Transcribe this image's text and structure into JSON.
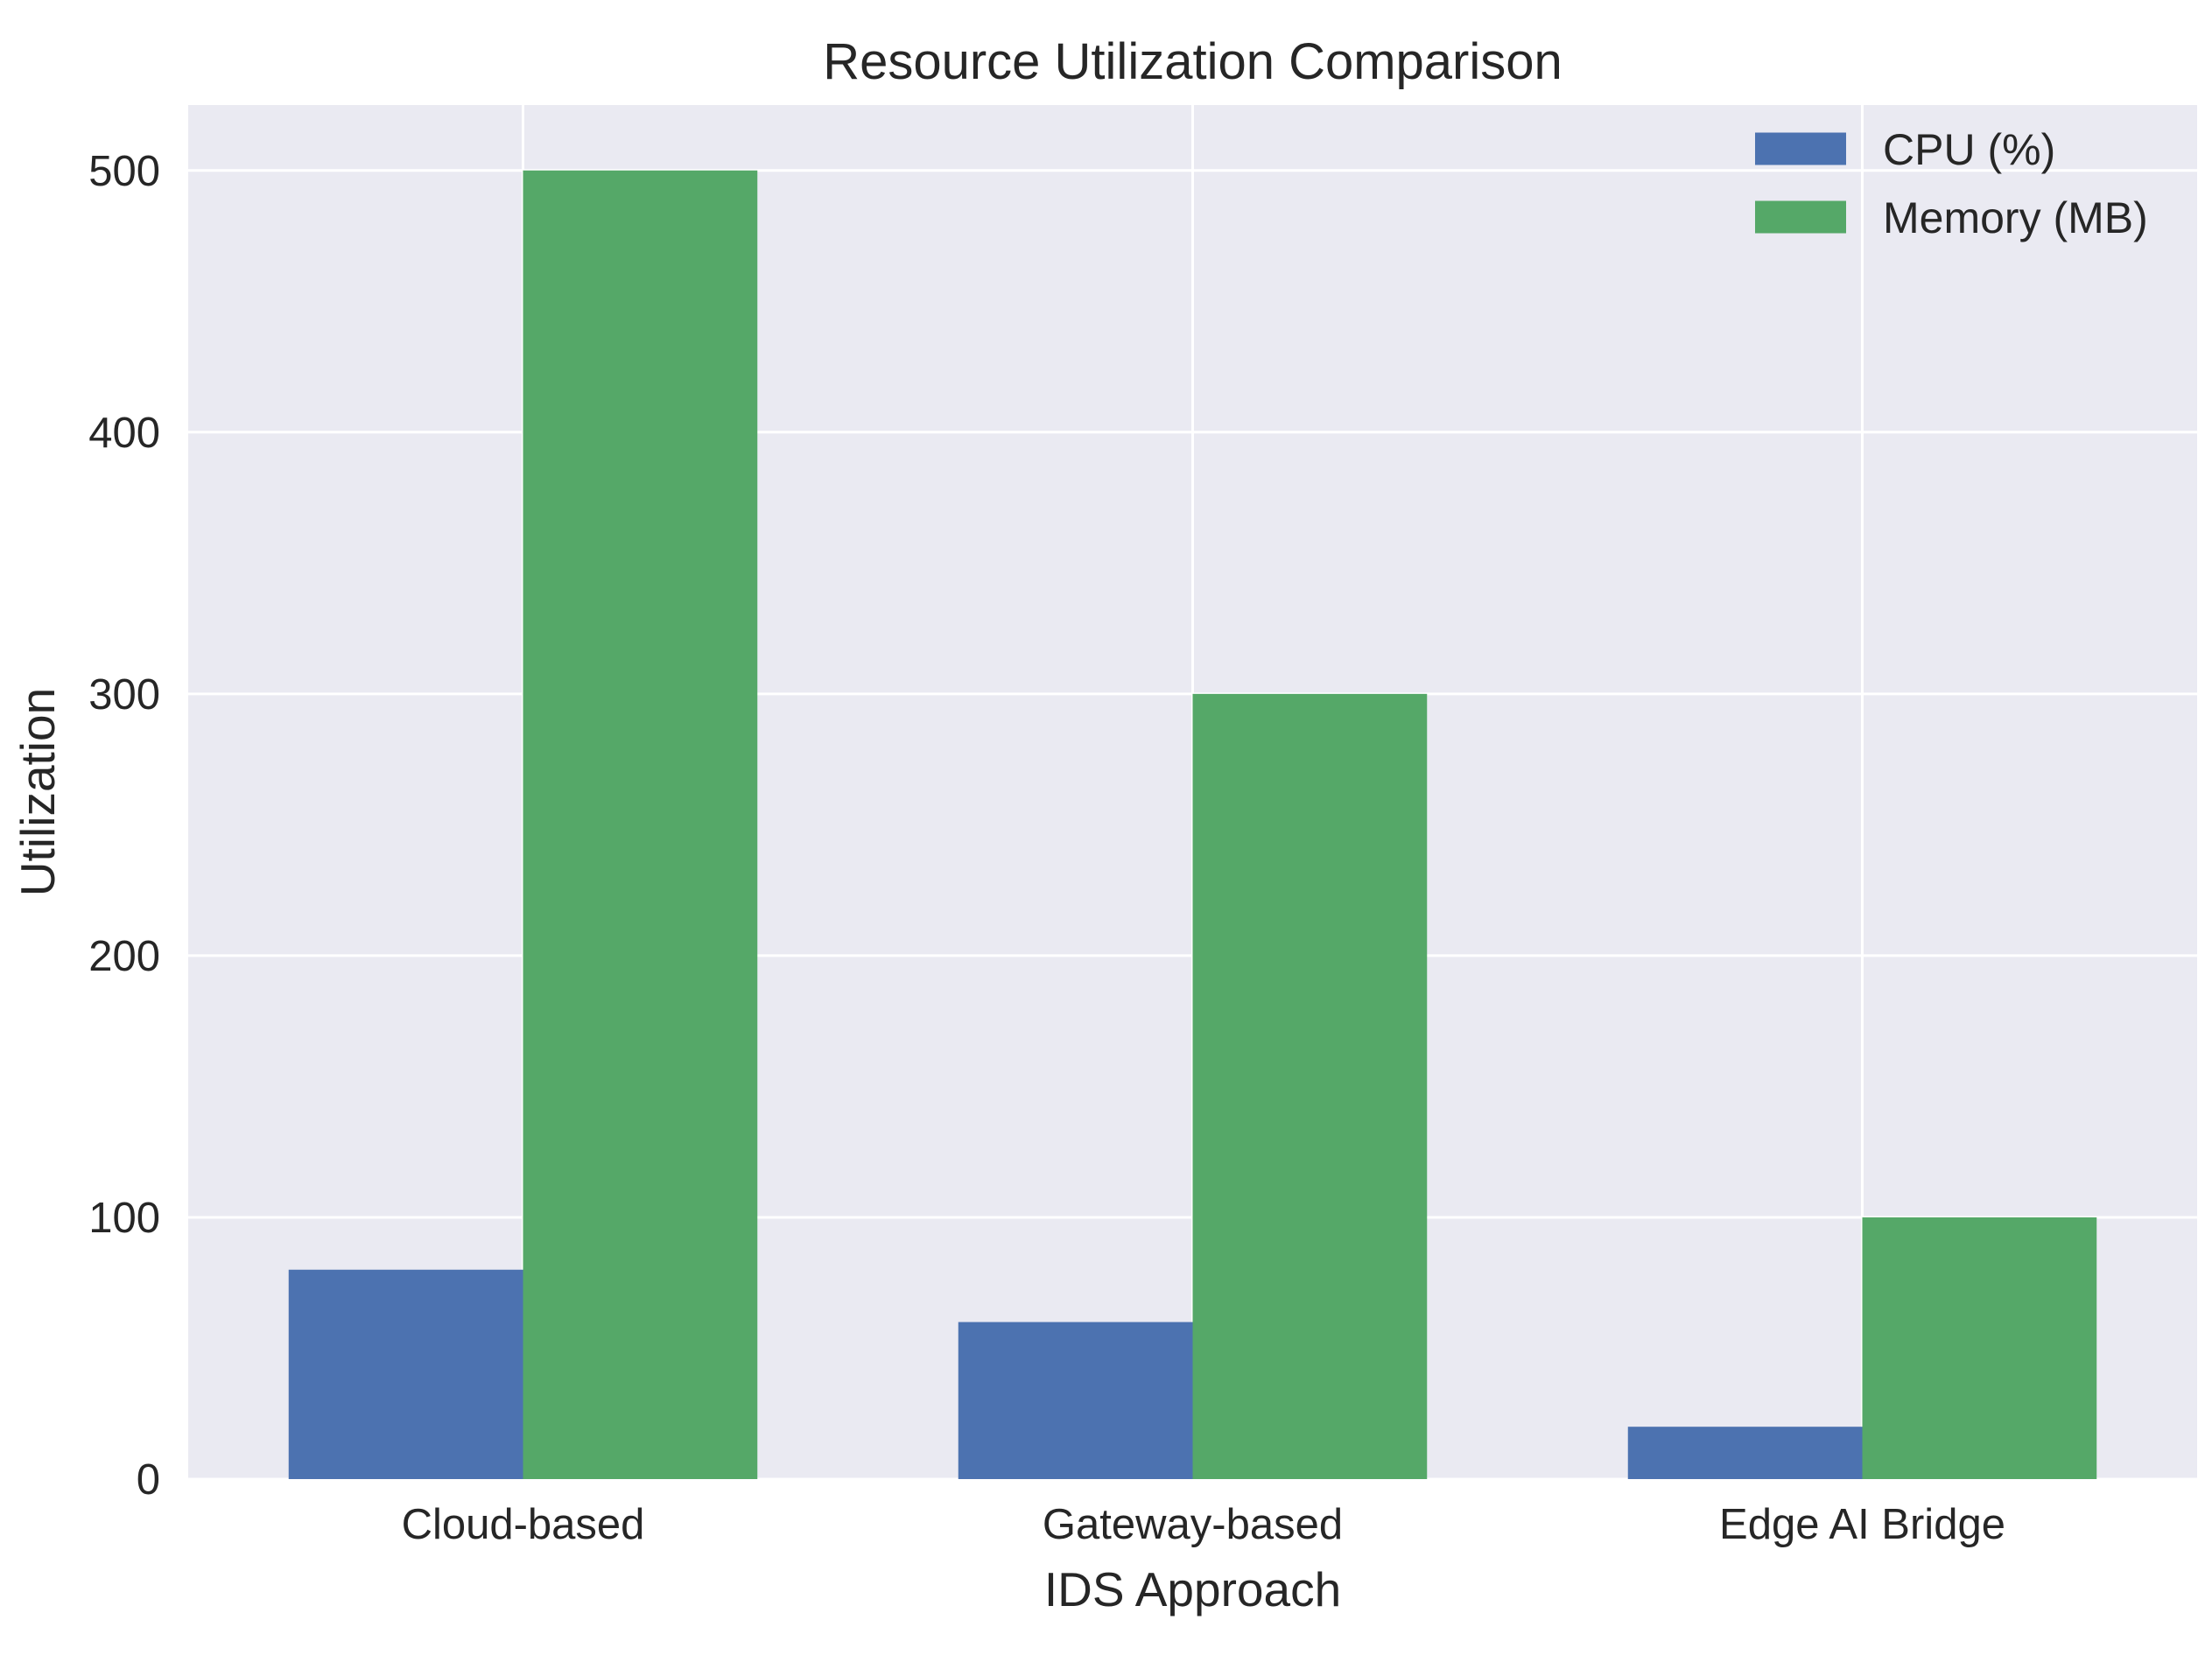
{
  "chart_data": {
    "type": "bar",
    "title": "Resource Utilization Comparison",
    "xlabel": "IDS Approach",
    "ylabel": "Utilization",
    "categories": [
      "Cloud-based",
      "Gateway-based",
      "Edge AI Bridge"
    ],
    "series": [
      {
        "name": "CPU (%)",
        "values": [
          80,
          60,
          20
        ],
        "color": "#4C72B0"
      },
      {
        "name": "Memory (MB)",
        "values": [
          500,
          300,
          100
        ],
        "color": "#55A868"
      }
    ],
    "ylim": [
      0,
      525
    ],
    "yticks": [
      "0",
      "100",
      "200",
      "300",
      "400",
      "500"
    ],
    "grid": true,
    "legend_position": "top-right",
    "background_color": "#EAEAF2",
    "grid_color": "#FFFFFF"
  }
}
